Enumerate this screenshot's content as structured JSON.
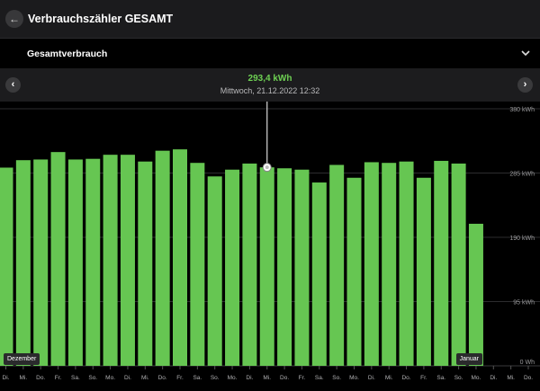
{
  "header": {
    "title": "Verbrauchszähler GESAMT",
    "back_icon": "arrow-left-icon"
  },
  "dropdown": {
    "label": "Gesamtverbrauch",
    "icon": "chevron-down-icon"
  },
  "selection": {
    "value": "293,4 kWh",
    "date": "Mittwoch, 21.12.2022 12:32"
  },
  "colors": {
    "bar": "#66c652",
    "background": "#000000",
    "header": "#1b1b1d",
    "accent": "#6ed053"
  },
  "chart_data": {
    "type": "bar",
    "ylim": [
      0,
      380
    ],
    "grid": true,
    "y_ticks": [
      {
        "value": 0,
        "label": "0 Wh"
      },
      {
        "value": 95,
        "label": "95 kWh"
      },
      {
        "value": 190,
        "label": "190 kWh"
      },
      {
        "value": 285,
        "label": "285 kWh"
      },
      {
        "value": 380,
        "label": "380 kWh"
      }
    ],
    "categories": [
      "Di.",
      "Mi.",
      "Do.",
      "Fr.",
      "Sa.",
      "So.",
      "Mo.",
      "Di.",
      "Mi.",
      "Do.",
      "Fr.",
      "Sa.",
      "So.",
      "Mo.",
      "Di.",
      "Mi.",
      "Do.",
      "Fr.",
      "Sa.",
      "So.",
      "Mo.",
      "Di.",
      "Mi.",
      "Do.",
      "Fr.",
      "Sa.",
      "So.",
      "Mo.",
      "Di.",
      "Mi.",
      "Do."
    ],
    "values": [
      293,
      304,
      305,
      316,
      305,
      306,
      312,
      312,
      302,
      318,
      320,
      300,
      280,
      290,
      299,
      293.4,
      292,
      290,
      271,
      297,
      278,
      301,
      300,
      302,
      278,
      303,
      299,
      210,
      null,
      null,
      null
    ],
    "selected_index": 15,
    "month_labels": [
      {
        "label": "Dezember",
        "index": 0
      },
      {
        "label": "Januar",
        "index": 26
      }
    ]
  }
}
